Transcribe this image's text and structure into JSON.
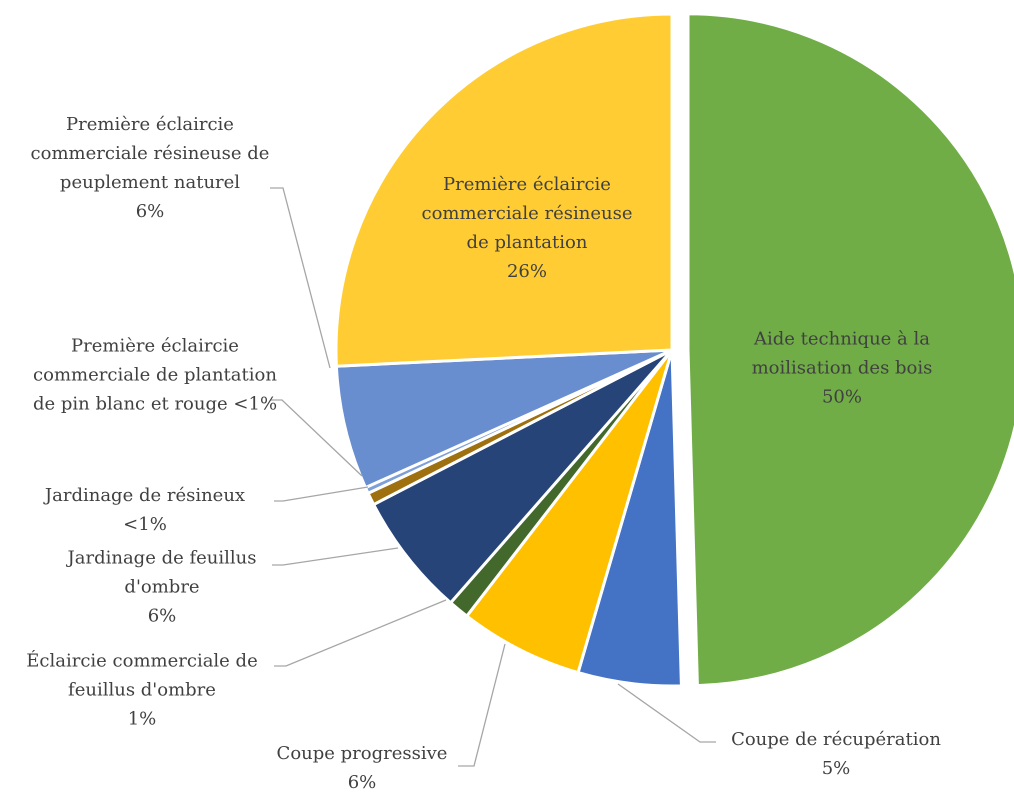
{
  "chart_data": {
    "type": "pie",
    "categories": [
      "Aide technique à la moilisation des bois",
      "Coupe de récupération",
      "Coupe progressive",
      "Éclaircie commerciale de feuillus d'ombre",
      "Jardinage de feuillus d'ombre",
      "Jardinage de résineux",
      "Première éclaircie commerciale de plantation de pin blanc et rouge",
      "Première éclaircie commerciale résineuse de peuplement naturel",
      "Première éclaircie commerciale résineuse de plantation"
    ],
    "values": [
      50,
      5,
      6,
      1,
      6,
      0.6,
      0.3,
      6,
      26
    ],
    "value_labels": [
      "50%",
      "5%",
      "6%",
      "1%",
      "6%",
      "<1%",
      "<1%",
      "6%",
      "26%"
    ],
    "colors": [
      "#70ad47",
      "#4472c4",
      "#ffc000",
      "#43682b",
      "#264478",
      "#9e7010",
      "#7f9fd8",
      "#698ed0",
      "#ffcd33"
    ]
  }
}
